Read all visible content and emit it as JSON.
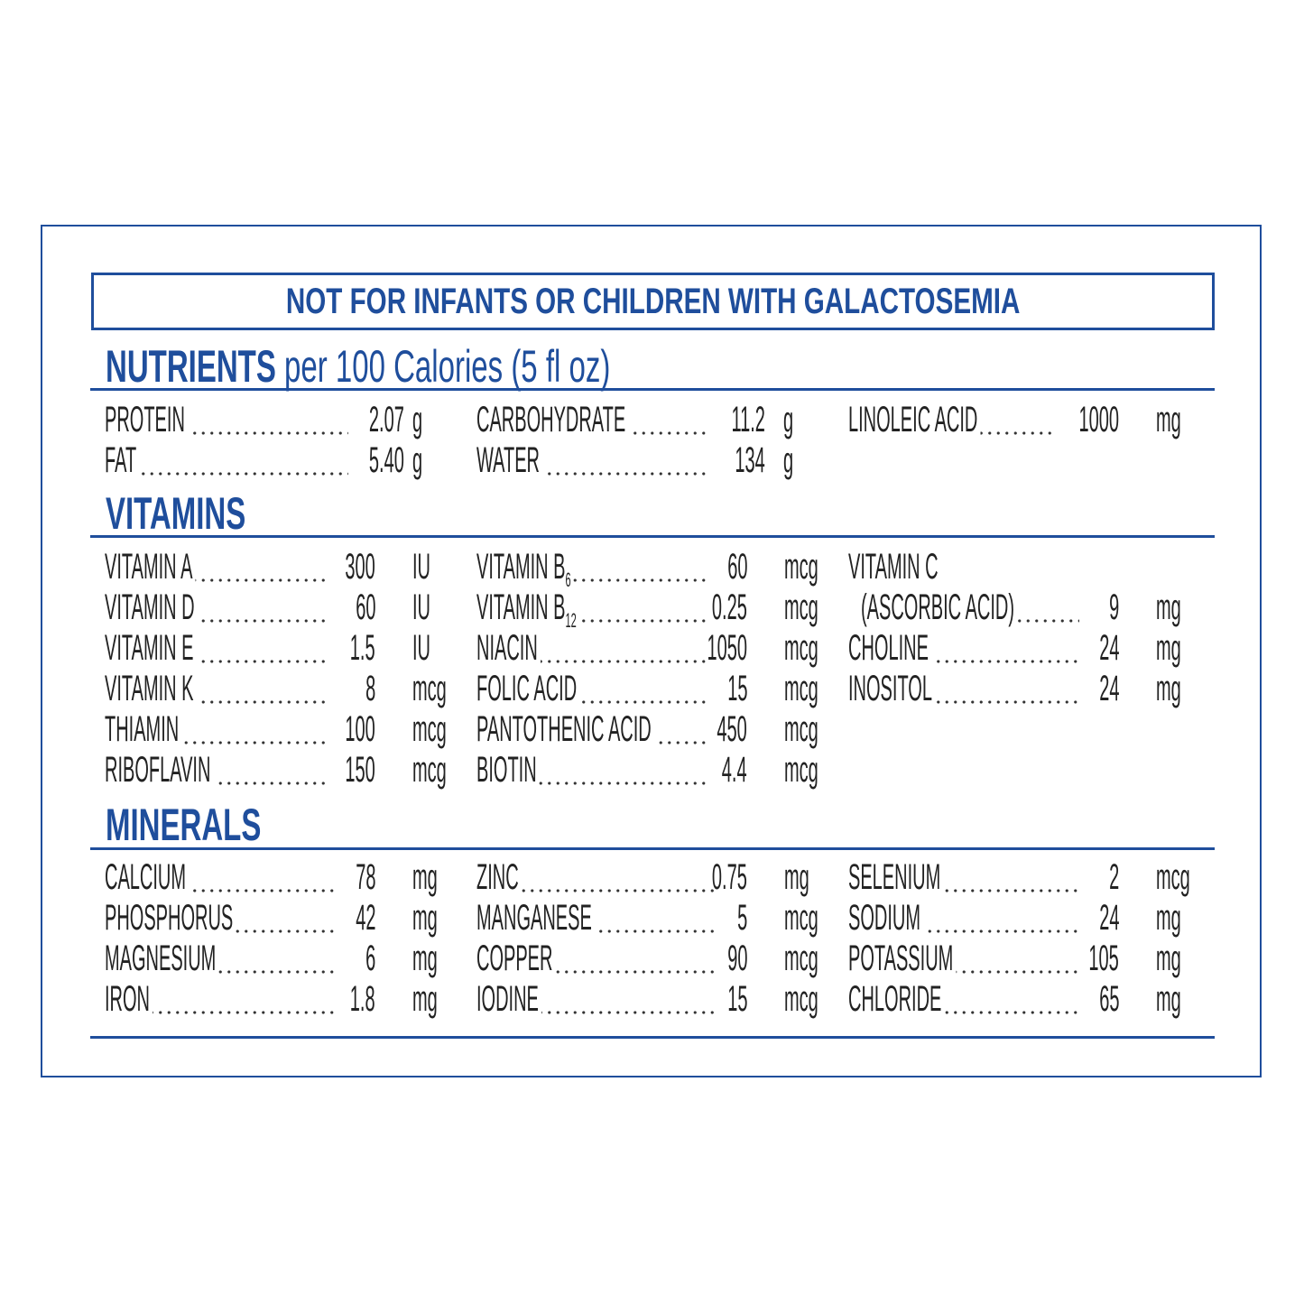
{
  "warning": "NOT FOR INFANTS OR CHILDREN WITH GALACTOSEMIA",
  "brand_color": "#1f4e9c",
  "sections": [
    {
      "title": "NUTRIENTS",
      "subtitle": "per 100 Calories (5 fl oz)",
      "columns": [
        [
          {
            "name": "PROTEIN",
            "value": "2.07",
            "unit": "g"
          },
          {
            "name": "FAT",
            "value": "5.40",
            "unit": "g"
          }
        ],
        [
          {
            "name": "CARBOHYDRATE",
            "value": "11.2",
            "unit": "g"
          },
          {
            "name": "WATER",
            "value": "134",
            "unit": "g"
          }
        ],
        [
          {
            "name": "LINOLEIC ACID",
            "value": "1000",
            "unit": "mg"
          }
        ]
      ]
    },
    {
      "title": "VITAMINS",
      "subtitle": "",
      "columns": [
        [
          {
            "name": "VITAMIN A",
            "value": "300",
            "unit": "IU"
          },
          {
            "name": "VITAMIN D",
            "value": "60",
            "unit": "IU"
          },
          {
            "name": "VITAMIN E",
            "value": "1.5",
            "unit": "IU"
          },
          {
            "name": "VITAMIN K",
            "value": "8",
            "unit": "mcg"
          },
          {
            "name": "THIAMIN",
            "value": "100",
            "unit": "mcg"
          },
          {
            "name": "RIBOFLAVIN",
            "value": "150",
            "unit": "mcg"
          }
        ],
        [
          {
            "name": "VITAMIN B",
            "sub": "6",
            "value": "60",
            "unit": "mcg"
          },
          {
            "name": "VITAMIN B",
            "sub": "12",
            "value": "0.25",
            "unit": "mcg"
          },
          {
            "name": "NIACIN",
            "value": "1050",
            "unit": "mcg"
          },
          {
            "name": "FOLIC ACID",
            "value": "15",
            "unit": "mcg"
          },
          {
            "name": "PANTOTHENIC ACID",
            "value": "450",
            "unit": "mcg"
          },
          {
            "name": "BIOTIN",
            "value": "4.4",
            "unit": "mcg"
          }
        ],
        [
          {
            "name": "VITAMIN C",
            "nodots": true
          },
          {
            "name": "(ASCORBIC ACID)",
            "indent": true,
            "value": "9",
            "unit": "mg"
          },
          {
            "name": "CHOLINE",
            "value": "24",
            "unit": "mg"
          },
          {
            "name": "INOSITOL",
            "value": "24",
            "unit": "mg"
          }
        ]
      ]
    },
    {
      "title": "MINERALS",
      "subtitle": "",
      "columns": [
        [
          {
            "name": "CALCIUM",
            "value": "78",
            "unit": "mg"
          },
          {
            "name": "PHOSPHORUS",
            "value": "42",
            "unit": "mg"
          },
          {
            "name": "MAGNESIUM",
            "value": "6",
            "unit": "mg"
          },
          {
            "name": "IRON",
            "value": "1.8",
            "unit": "mg"
          }
        ],
        [
          {
            "name": "ZINC",
            "value": "0.75",
            "unit": "mg"
          },
          {
            "name": "MANGANESE",
            "value": "5",
            "unit": "mcg"
          },
          {
            "name": "COPPER",
            "value": "90",
            "unit": "mcg"
          },
          {
            "name": "IODINE",
            "value": "15",
            "unit": "mcg"
          }
        ],
        [
          {
            "name": "SELENIUM",
            "value": "2",
            "unit": "mcg"
          },
          {
            "name": "SODIUM",
            "value": "24",
            "unit": "mg"
          },
          {
            "name": "POTASSIUM",
            "value": "105",
            "unit": "mg"
          },
          {
            "name": "CHLORIDE",
            "value": "65",
            "unit": "mg"
          }
        ]
      ]
    }
  ]
}
